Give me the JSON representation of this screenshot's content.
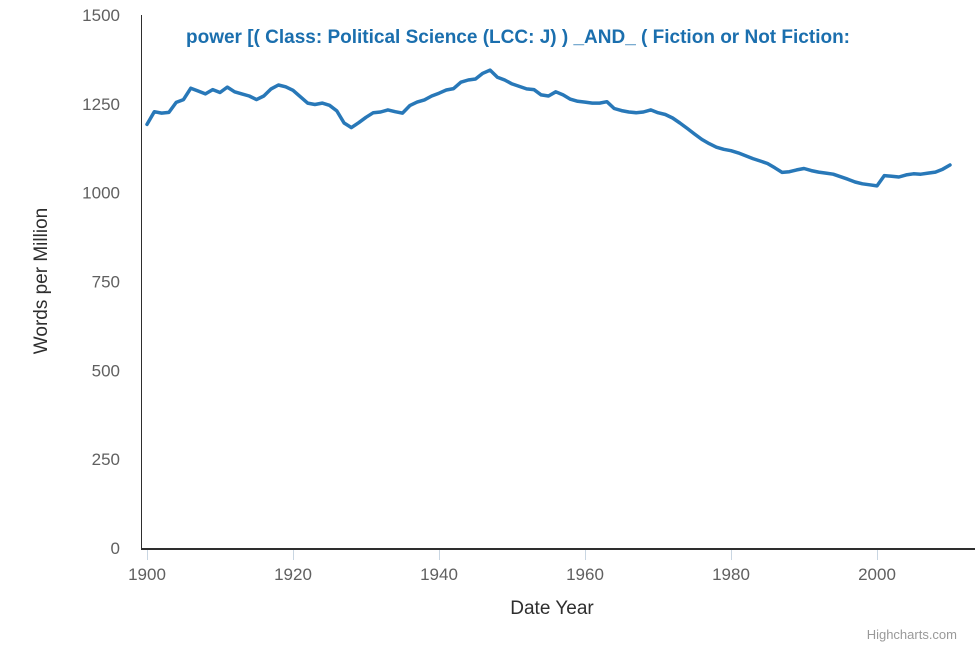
{
  "chart_data": {
    "type": "line",
    "title": "power [( Class: Political Science (LCC: J) ) _AND_ ( Fiction or Not Fiction:",
    "xlabel": "Date Year",
    "ylabel": "Words per Million",
    "credit": "Highcharts.com",
    "x_ticks": [
      1900,
      1920,
      1940,
      1960,
      1980,
      2000
    ],
    "y_ticks": [
      0,
      250,
      500,
      750,
      1000,
      1250,
      1500
    ],
    "ylim": [
      0,
      1500
    ],
    "xlim": [
      1899,
      2013
    ],
    "grid": false,
    "legend": false,
    "colors": {
      "line": "#2878b8",
      "title": "#1b6fae",
      "tick_label": "#606060",
      "axis_title": "#2e2e2e",
      "axis_line": "#2e2e2e",
      "tick_mark": "#c9d6e2",
      "credit": "#999999",
      "background": "#ffffff"
    },
    "series": [
      {
        "name": "power",
        "x_start": 1900,
        "x_step": 1,
        "x_end": 2010,
        "values": [
          1192,
          1228,
          1224,
          1226,
          1254,
          1262,
          1294,
          1286,
          1278,
          1290,
          1282,
          1297,
          1284,
          1278,
          1272,
          1262,
          1272,
          1292,
          1303,
          1298,
          1288,
          1270,
          1252,
          1248,
          1252,
          1246,
          1230,
          1196,
          1183,
          1197,
          1212,
          1225,
          1227,
          1233,
          1228,
          1224,
          1245,
          1255,
          1261,
          1272,
          1280,
          1289,
          1293,
          1311,
          1317,
          1320,
          1336,
          1345,
          1325,
          1317,
          1306,
          1299,
          1292,
          1290,
          1275,
          1272,
          1284,
          1275,
          1263,
          1257,
          1255,
          1252,
          1252,
          1256,
          1237,
          1231,
          1227,
          1225,
          1227,
          1233,
          1225,
          1220,
          1210,
          1196,
          1181,
          1165,
          1150,
          1138,
          1128,
          1122,
          1118,
          1112,
          1104,
          1096,
          1089,
          1082,
          1070,
          1057,
          1059,
          1064,
          1068,
          1062,
          1058,
          1055,
          1052,
          1045,
          1038,
          1030,
          1025,
          1022,
          1019,
          1048,
          1046,
          1044,
          1050,
          1053,
          1052,
          1055,
          1058,
          1066,
          1078
        ]
      }
    ]
  }
}
